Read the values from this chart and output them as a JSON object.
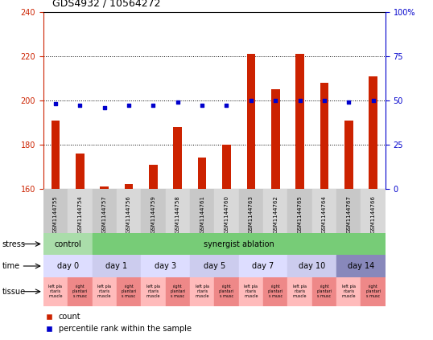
{
  "title": "GDS4932 / 10564272",
  "samples": [
    "GSM1144755",
    "GSM1144754",
    "GSM1144757",
    "GSM1144756",
    "GSM1144759",
    "GSM1144758",
    "GSM1144761",
    "GSM1144760",
    "GSM1144763",
    "GSM1144762",
    "GSM1144765",
    "GSM1144764",
    "GSM1144767",
    "GSM1144766"
  ],
  "bar_values": [
    191,
    176,
    161,
    162,
    171,
    188,
    174,
    180,
    221,
    205,
    221,
    208,
    191,
    211
  ],
  "dot_values": [
    48,
    47,
    46,
    47,
    47,
    49,
    47,
    47,
    50,
    50,
    50,
    50,
    49,
    50
  ],
  "ylim_left": [
    160,
    240
  ],
  "ylim_right": [
    0,
    100
  ],
  "yticks_left": [
    160,
    180,
    200,
    220,
    240
  ],
  "yticks_right": [
    0,
    25,
    50,
    75,
    100
  ],
  "bar_color": "#cc2200",
  "dot_color": "#0000cc",
  "bar_bottom": 160,
  "stress_spans": [
    {
      "label": "control",
      "start": 0,
      "end": 2,
      "color": "#aaddaa"
    },
    {
      "label": "synergist ablation",
      "start": 2,
      "end": 14,
      "color": "#77cc77"
    }
  ],
  "time_spans": [
    {
      "label": "day 0",
      "start": 0,
      "end": 2,
      "color": "#ddddff"
    },
    {
      "label": "day 1",
      "start": 2,
      "end": 4,
      "color": "#ccccee"
    },
    {
      "label": "day 3",
      "start": 4,
      "end": 6,
      "color": "#ddddff"
    },
    {
      "label": "day 5",
      "start": 6,
      "end": 8,
      "color": "#ccccee"
    },
    {
      "label": "day 7",
      "start": 8,
      "end": 10,
      "color": "#ddddff"
    },
    {
      "label": "day 10",
      "start": 10,
      "end": 12,
      "color": "#ccccee"
    },
    {
      "label": "day 14",
      "start": 12,
      "end": 14,
      "color": "#8888bb"
    }
  ],
  "axis_color_left": "#cc2200",
  "axis_color_right": "#0000cc",
  "grid_ticks": [
    180,
    200,
    220
  ],
  "sample_box_color": "#cccccc",
  "tissue_color_even": "#ffbbbb",
  "tissue_color_odd": "#ee8888"
}
